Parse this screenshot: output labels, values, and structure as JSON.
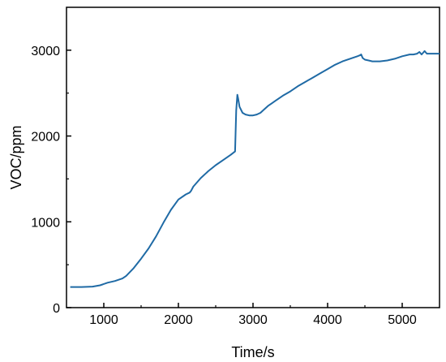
{
  "chart_data": {
    "type": "line",
    "title": "",
    "xlabel": "Time/s",
    "ylabel": "VOC/ppm",
    "xlim": [
      500,
      5500
    ],
    "ylim": [
      0,
      3500
    ],
    "x_ticks": [
      1000,
      2000,
      3000,
      4000,
      5000
    ],
    "x_tick_labels": [
      "1000",
      "2000",
      "3000",
      "4000",
      "5000"
    ],
    "y_ticks": [
      0,
      1000,
      2000,
      3000
    ],
    "y_tick_labels": [
      "0",
      "1000",
      "2000",
      "3000"
    ],
    "grid": false,
    "legend": "none",
    "line_color": "#1f6aa5",
    "series": [
      {
        "x": [
          550,
          700,
          850,
          950,
          1050,
          1150,
          1250,
          1300,
          1400,
          1500,
          1600,
          1700,
          1800,
          1900,
          2000,
          2100,
          2150,
          2170,
          2200,
          2300,
          2400,
          2500,
          2600,
          2700,
          2760,
          2775,
          2790,
          2800,
          2820,
          2860,
          2900,
          2950,
          3000,
          3050,
          3100,
          3150,
          3200,
          3250,
          3300,
          3400,
          3500,
          3600,
          3700,
          3800,
          3900,
          4000,
          4100,
          4200,
          4300,
          4400,
          4430,
          4450,
          4470,
          4500,
          4550,
          4600,
          4700,
          4800,
          4900,
          5000,
          5100,
          5150,
          5200,
          5230,
          5260,
          5280,
          5300,
          5330,
          5400,
          5500
        ],
        "y": [
          240,
          240,
          245,
          260,
          290,
          310,
          340,
          370,
          460,
          570,
          690,
          830,
          990,
          1140,
          1260,
          1320,
          1340,
          1360,
          1410,
          1510,
          1590,
          1660,
          1720,
          1780,
          1820,
          2300,
          2480,
          2440,
          2340,
          2270,
          2250,
          2240,
          2240,
          2250,
          2270,
          2310,
          2350,
          2380,
          2410,
          2470,
          2520,
          2580,
          2630,
          2680,
          2730,
          2780,
          2830,
          2870,
          2900,
          2930,
          2940,
          2950,
          2910,
          2890,
          2880,
          2870,
          2870,
          2880,
          2900,
          2930,
          2950,
          2950,
          2960,
          2980,
          2950,
          2970,
          2990,
          2960,
          2960,
          2960
        ]
      }
    ]
  }
}
